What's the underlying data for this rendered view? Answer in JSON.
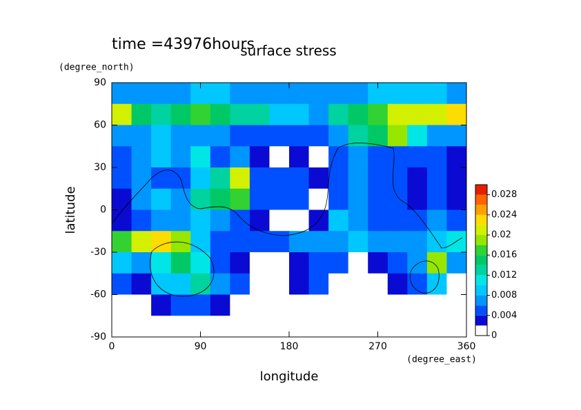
{
  "chart_data": {
    "type": "contour",
    "title": "surface stress",
    "subtitle": "time =43976hours",
    "xlabel": "longitude",
    "xunit": "(degree_east)",
    "ylabel": "latitude",
    "yunit": "(degree_north)",
    "xlim": [
      0,
      360
    ],
    "xticks": [
      0,
      90,
      180,
      270,
      360
    ],
    "ylim": [
      -90,
      90
    ],
    "yticks": [
      -90,
      -60,
      -30,
      0,
      30,
      60,
      90
    ],
    "lon": [
      10,
      30,
      50,
      70,
      90,
      110,
      130,
      150,
      170,
      190,
      210,
      230,
      250,
      270,
      290,
      310,
      330,
      350
    ],
    "lat": [
      82.5,
      67.5,
      52.5,
      37.5,
      22.5,
      7.5,
      -7.5,
      -22.5,
      -37.5,
      -52.5,
      -67.5,
      -82.5
    ],
    "z": [
      [
        0.006,
        0.006,
        0.006,
        0.006,
        0.008,
        0.008,
        0.006,
        0.006,
        0.006,
        0.006,
        0.006,
        0.006,
        0.006,
        0.008,
        0.008,
        0.008,
        0.008,
        0.006
      ],
      [
        0.02,
        0.014,
        0.012,
        0.014,
        0.016,
        0.014,
        0.012,
        0.012,
        0.008,
        0.008,
        0.006,
        0.012,
        0.014,
        0.016,
        0.02,
        0.02,
        0.02,
        0.022
      ],
      [
        0.006,
        0.006,
        0.008,
        0.006,
        0.006,
        0.006,
        0.004,
        0.004,
        0.004,
        0.004,
        0.004,
        0.006,
        0.012,
        0.014,
        0.018,
        0.01,
        0.006,
        0.006
      ],
      [
        0.004,
        0.006,
        0.008,
        0.006,
        0.01,
        0.004,
        0.006,
        0.002,
        0.001,
        0.002,
        0.001,
        0.004,
        0.006,
        0.004,
        0.004,
        0.004,
        0.004,
        0.002
      ],
      [
        0.004,
        0.006,
        0.004,
        0.004,
        0.008,
        0.012,
        0.02,
        0.004,
        0.004,
        0.004,
        0.002,
        0.004,
        0.006,
        0.004,
        0.004,
        0.002,
        0.004,
        0.002
      ],
      [
        0.002,
        0.006,
        0.008,
        0.006,
        0.012,
        0.014,
        0.016,
        0.004,
        0.004,
        0.004,
        0.001,
        0.004,
        0.006,
        0.004,
        0.004,
        0.002,
        0.004,
        0.002
      ],
      [
        0.002,
        0.004,
        0.006,
        0.006,
        0.008,
        0.006,
        0.004,
        0.002,
        0.001,
        0.001,
        0.002,
        0.008,
        0.006,
        0.004,
        0.004,
        0.004,
        0.006,
        0.004
      ],
      [
        0.016,
        0.02,
        0.022,
        0.018,
        0.008,
        0.004,
        0.004,
        0.004,
        0.004,
        0.006,
        0.006,
        0.006,
        0.008,
        0.006,
        0.006,
        0.006,
        0.008,
        0.01
      ],
      [
        0.008,
        0.006,
        0.01,
        0.014,
        0.01,
        0.004,
        0.002,
        0.001,
        0.001,
        0.002,
        0.004,
        0.004,
        0.001,
        0.002,
        0.004,
        0.006,
        0.018,
        0.006
      ],
      [
        0.004,
        0.002,
        0.008,
        0.008,
        0.012,
        0.006,
        0.004,
        0.001,
        0.001,
        0.002,
        0.004,
        0.001,
        0.001,
        0.001,
        0.002,
        0.004,
        0.008,
        0.001
      ],
      [
        0.001,
        0.001,
        0.002,
        0.004,
        0.004,
        0.002,
        0.001,
        0.001,
        0.001,
        0.001,
        0.001,
        0.001,
        0.001,
        0.001,
        0.001,
        0.001,
        0.001,
        0.001
      ],
      [
        0,
        0,
        0,
        0,
        0,
        0,
        0,
        0,
        0,
        0,
        0,
        0,
        0,
        0,
        0,
        0,
        0,
        0
      ]
    ],
    "levels": [
      0,
      0.002,
      0.004,
      0.006,
      0.008,
      0.01,
      0.012,
      0.014,
      0.016,
      0.018,
      0.02,
      0.022,
      0.024,
      0.026,
      0.028,
      0.03
    ],
    "colors": [
      "#ffffff",
      "#0a0ad2",
      "#0050ff",
      "#0096ff",
      "#00c8ff",
      "#00e6e6",
      "#00d2a0",
      "#00c864",
      "#32d232",
      "#96e600",
      "#d2f000",
      "#ffdc00",
      "#ffa000",
      "#ff6400",
      "#e61e00"
    ],
    "cticks": [
      0,
      0.004,
      0.008,
      0.012,
      0.016,
      0.02,
      0.024,
      0.028
    ]
  }
}
